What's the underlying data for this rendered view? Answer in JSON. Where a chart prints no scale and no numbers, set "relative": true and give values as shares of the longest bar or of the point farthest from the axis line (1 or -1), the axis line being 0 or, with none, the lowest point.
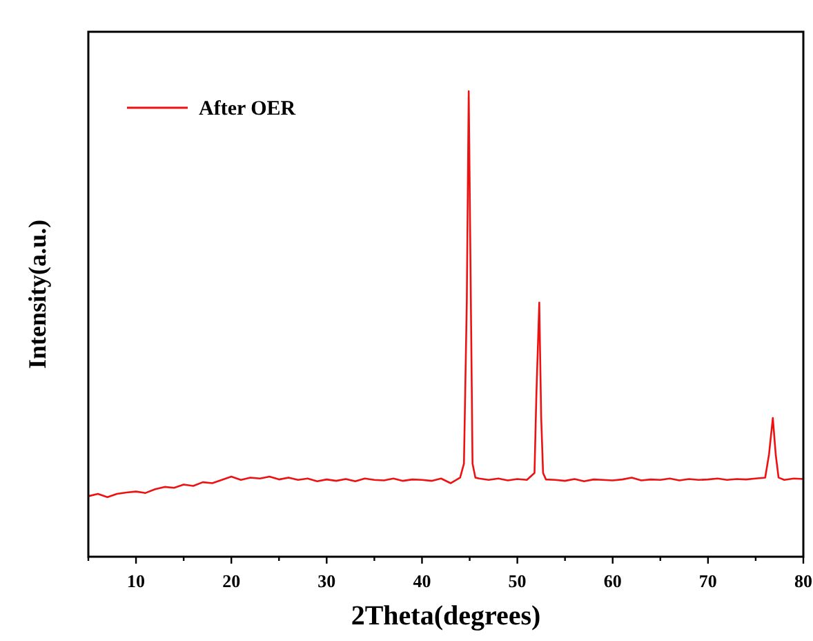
{
  "chart_data": {
    "type": "line",
    "xlabel": "2Theta(degrees)",
    "ylabel": "Intensity(a.u.)",
    "relative": true,
    "xlim": [
      5,
      80
    ],
    "xticks": [
      {
        "value": 5,
        "label": null
      },
      10,
      {
        "value": 15,
        "label": null
      },
      20,
      {
        "value": 25,
        "label": null
      },
      30,
      {
        "value": 35,
        "label": null
      },
      40,
      {
        "value": 45,
        "label": null
      },
      50,
      {
        "value": 55,
        "label": null
      },
      60,
      {
        "value": 65,
        "label": null
      },
      70,
      {
        "value": 75,
        "label": null
      },
      80
    ],
    "tick_labels": "x",
    "legend": "top left",
    "grid": false,
    "series": [
      {
        "name": "After OER",
        "color": "#ee1111",
        "x": [
          5,
          6,
          7,
          8,
          9,
          10,
          11,
          12,
          13,
          14,
          15,
          16,
          17,
          18,
          19,
          20,
          21,
          22,
          23,
          24,
          25,
          26,
          27,
          28,
          29,
          30,
          31,
          32,
          33,
          34,
          35,
          36,
          37,
          38,
          39,
          40,
          41,
          42,
          43,
          44,
          44.4,
          44.7,
          44.9,
          45.1,
          45.3,
          45.6,
          46,
          47,
          48,
          49,
          50,
          51,
          51.8,
          52,
          52.3,
          52.5,
          52.7,
          53,
          54,
          55,
          56,
          57,
          58,
          59,
          60,
          61,
          62,
          63,
          64,
          65,
          66,
          67,
          68,
          69,
          70,
          71,
          72,
          73,
          74,
          75,
          76,
          76.4,
          76.8,
          77.1,
          77.4,
          78,
          79,
          80
        ],
        "values": [
          0.13,
          0.135,
          0.128,
          0.135,
          0.138,
          0.14,
          0.137,
          0.145,
          0.15,
          0.148,
          0.155,
          0.152,
          0.16,
          0.158,
          0.165,
          0.172,
          0.165,
          0.17,
          0.168,
          0.172,
          0.166,
          0.17,
          0.165,
          0.168,
          0.162,
          0.166,
          0.163,
          0.167,
          0.162,
          0.168,
          0.165,
          0.164,
          0.168,
          0.163,
          0.166,
          0.165,
          0.163,
          0.168,
          0.158,
          0.17,
          0.2,
          0.55,
          1,
          0.6,
          0.2,
          0.17,
          0.168,
          0.165,
          0.168,
          0.164,
          0.167,
          0.165,
          0.18,
          0.35,
          0.546,
          0.3,
          0.18,
          0.166,
          0.165,
          0.163,
          0.167,
          0.162,
          0.166,
          0.165,
          0.164,
          0.166,
          0.17,
          0.164,
          0.166,
          0.165,
          0.168,
          0.164,
          0.167,
          0.165,
          0.166,
          0.168,
          0.165,
          0.167,
          0.166,
          0.168,
          0.17,
          0.22,
          0.298,
          0.22,
          0.17,
          0.165,
          0.168,
          0.167
        ]
      }
    ]
  }
}
